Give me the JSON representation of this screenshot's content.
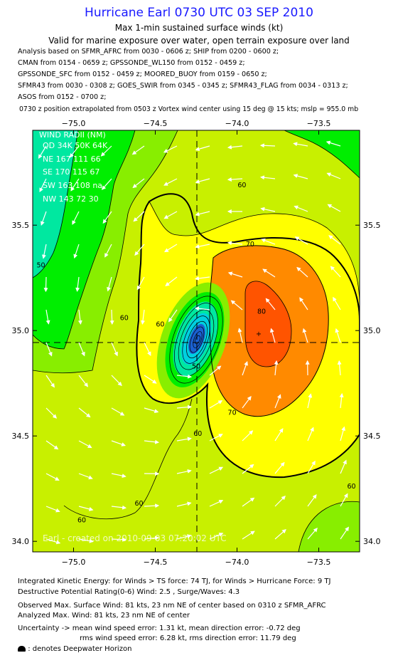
{
  "header": {
    "title": "Hurricane Earl 0730 UTC 03 SEP 2010",
    "subtitle1": "Max 1-min sustained surface winds (kt)",
    "subtitle2": "Valid for marine exposure over water, open terrain exposure over land"
  },
  "analysis_lines": [
    "Analysis based on SFMR_AFRC from 0030 - 0606 z; SHIP from 0200 - 0600 z;",
    "CMAN from 0154 - 0659 z; GPSSONDE_WL150 from 0152 - 0459 z;",
    "GPSSONDE_SFC from 0152 - 0459 z; MOORED_BUOY from 0159 - 0650 z;",
    "SFMR43 from 0030 - 0308 z; GOES_SWIR from 0345 - 0345 z; SFMR43_FLAG from 0034 - 0313 z;",
    "ASOS from 0152 - 0700 z;",
    "0730 z position extrapolated from 0503 z Vortex wind center using 15 deg @ 15 kts; mslp = 955.0 mb"
  ],
  "wind_radii": {
    "header": "WIND RADII (NM)",
    "rows": [
      {
        "label": "QD 34K 50K 64K"
      },
      {
        "label": "NE 167 111 66"
      },
      {
        "label": "SE 170 115 67"
      },
      {
        "label": "SW 163 108 na"
      },
      {
        "label": "NW 143 72 30"
      }
    ]
  },
  "watermark": "Earl - created on 2010-09-03 07:20:02 UTC",
  "footer": {
    "line1": "Integrated Kinetic Energy: for Winds > TS force: 74 TJ, for Winds > Hurricane Force: 9 TJ",
    "line2": "Destructive Potential Rating(0-6) Wind: 2.5 , Surge/Waves: 4.3",
    "line3": "Observed Max. Surface Wind: 81 kts, 23 nm NE of center based on 0310 z SFMR_AFRC",
    "line4": "Analyzed Max. Wind: 81 kts, 23 nm NE of center",
    "line5": "Uncertainty -> mean wind speed error: 1.31 kt, mean direction error: -0.72 deg",
    "line6": "rms wind speed error: 6.28 kt, rms direction error: 11.79 deg",
    "line7": ": denotes Deepwater Horizon"
  },
  "chart_data": {
    "type": "heatmap",
    "title": "Hurricane Earl 0730 UTC 03 SEP 2010",
    "xlabel": "",
    "ylabel": "",
    "xlim": [
      -75.25,
      -73.25
    ],
    "ylim": [
      33.95,
      35.95
    ],
    "x_ticks": [
      -75.0,
      -74.5,
      -74.0,
      -73.5
    ],
    "y_ticks": [
      34.0,
      34.5,
      35.0,
      35.5
    ],
    "x_tick_labels": [
      "−75.0",
      "−74.5",
      "−74.0",
      "−73.5"
    ],
    "y_tick_labels": [
      "34.0",
      "34.5",
      "35.0",
      "35.5"
    ],
    "storm_center": {
      "lon": -74.25,
      "lat": 34.97
    },
    "max_wind_location": {
      "lon": -73.87,
      "lat": 34.99
    },
    "contour_labels": [
      {
        "text": "60",
        "lon": -73.97,
        "lat": 35.68
      },
      {
        "text": "70",
        "lon": -73.92,
        "lat": 35.4
      },
      {
        "text": "80",
        "lon": -73.85,
        "lat": 35.08
      },
      {
        "text": "60",
        "lon": -74.69,
        "lat": 35.05
      },
      {
        "text": "60",
        "lon": -74.47,
        "lat": 35.02
      },
      {
        "text": "50",
        "lon": -74.25,
        "lat": 34.82
      },
      {
        "text": "70",
        "lon": -74.03,
        "lat": 34.6
      },
      {
        "text": "60",
        "lon": -74.24,
        "lat": 34.5
      },
      {
        "text": "50",
        "lon": -75.2,
        "lat": 35.3
      },
      {
        "text": "60",
        "lon": -74.6,
        "lat": 34.17
      },
      {
        "text": "60",
        "lon": -74.95,
        "lat": 34.09
      },
      {
        "text": "60",
        "lon": -73.3,
        "lat": 34.25
      }
    ],
    "wind_speed_bands": [
      {
        "min": 40,
        "max": 45,
        "color": "#00e8a0"
      },
      {
        "min": 45,
        "max": 50,
        "color": "#00ee00"
      },
      {
        "min": 50,
        "max": 55,
        "color": "#88ee00"
      },
      {
        "min": 55,
        "max": 60,
        "color": "#c8f000"
      },
      {
        "min": 60,
        "max": 70,
        "color": "#ffff00"
      },
      {
        "min": 70,
        "max": 80,
        "color": "#ff8a00"
      },
      {
        "min": 80,
        "max": 90,
        "color": "#ff5400"
      }
    ]
  }
}
